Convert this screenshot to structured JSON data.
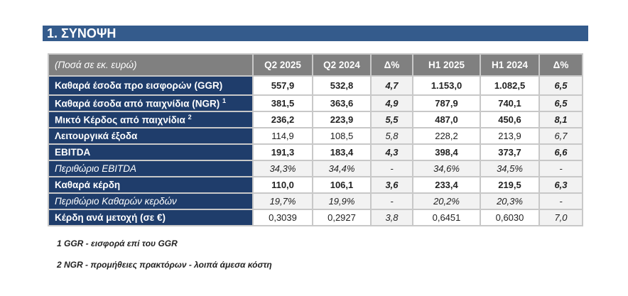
{
  "section_title": "1.  ΣΥΝΟΨΗ",
  "table": {
    "headers": [
      "(Ποσά σε εκ. ευρώ)",
      "Q2 2025",
      "Q2 2024",
      "Δ%",
      "H1 2025",
      "H1 2024",
      "Δ%"
    ],
    "rows": [
      {
        "label": "Καθαρά έσοδα προ εισφορών (GGR)",
        "sup": "",
        "values": [
          "557,9",
          "532,8",
          "4,7",
          "1.153,0",
          "1.082,5",
          "6,5"
        ],
        "style": "b first"
      },
      {
        "label": "Καθαρά έσοδα από παιχνίδια (NGR)",
        "sup": "1",
        "values": [
          "381,5",
          "363,6",
          "4,9",
          "787,9",
          "740,1",
          "6,5"
        ],
        "style": "b"
      },
      {
        "label": "Μικτό Κέρδος από παιχνίδια",
        "sup": "2",
        "values": [
          "236,2",
          "223,9",
          "5,5",
          "487,0",
          "450,6",
          "8,1"
        ],
        "style": "b"
      },
      {
        "label": "Λειτουργικά έξοδα",
        "sup": "",
        "values": [
          "114,9",
          "108,5",
          "5,8",
          "228,2",
          "213,9",
          "6,7"
        ],
        "style": ""
      },
      {
        "label": "EBITDA",
        "sup": "",
        "values": [
          "191,3",
          "183,4",
          "4,3",
          "398,4",
          "373,7",
          "6,6"
        ],
        "style": "b"
      },
      {
        "label": "Περιθώριο EBITDA",
        "sup": "",
        "values": [
          "34,3%",
          "34,4%",
          "-",
          "34,6%",
          "34,5%",
          "-"
        ],
        "style": "m"
      },
      {
        "label": "Καθαρά κέρδη",
        "sup": "",
        "values": [
          "110,0",
          "106,1",
          "3,6",
          "233,4",
          "219,5",
          "6,3"
        ],
        "style": "b"
      },
      {
        "label": "Περιθώριο Καθαρών κερδών",
        "sup": "",
        "values": [
          "19,7%",
          "19,9%",
          "-",
          "20,2%",
          "20,3%",
          "-"
        ],
        "style": "m"
      },
      {
        "label": "Κέρδη ανά μετοχή (σε €)",
        "sup": "",
        "values": [
          "0,3039",
          "0,2927",
          "3,8",
          "0,6451",
          "0,6030",
          "7,0"
        ],
        "style": ""
      }
    ]
  },
  "footnotes": [
    "1 GGR - εισφορά επί του GGR",
    "2 NGR - προμήθειες πρακτόρων - λοιπά άμεσα κόστη"
  ]
}
